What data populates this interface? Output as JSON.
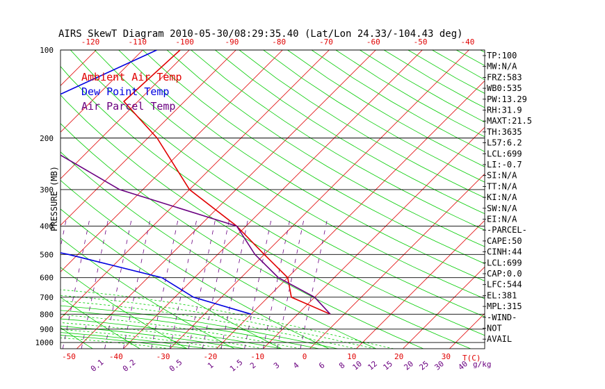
{
  "chart_data": {
    "type": "skewt",
    "title": "AIRS SkewT Diagram 2010-05-30/08:29:35.40 (Lat/Lon 24.33/-104.43 deg)",
    "ylabel": "PRESSURE (MB)",
    "temp_unit": "T(C)",
    "mixing_unit": "g/kg",
    "pressure_ticks": [
      100,
      200,
      300,
      400,
      500,
      600,
      700,
      800,
      900,
      1000
    ],
    "top_temp_ticks": [
      "-120",
      "-110",
      "-100",
      "-90",
      "-80",
      "-70",
      "-60",
      "-50",
      "-40"
    ],
    "bottom_temp_ticks": [
      "-50",
      "-40",
      "-30",
      "-20",
      "-10",
      "0",
      "10",
      "20",
      "30"
    ],
    "mixing_ticks": [
      "0.1",
      "0.2",
      "0.5",
      "1",
      "1.5",
      "2",
      "3",
      "4",
      "6",
      "8",
      "10",
      "12",
      "15",
      "20",
      "25",
      "30",
      "40"
    ],
    "legend": [
      {
        "label": "Ambient Air Temp",
        "color": "#e00000"
      },
      {
        "label": "Dew Point Temp",
        "color": "#0000e0"
      },
      {
        "label": "Air Parcel Temp",
        "color": "#6a0080"
      }
    ],
    "series": [
      {
        "name": "Ambient Air Temp",
        "color": "#e00000",
        "points": [
          [
            100,
            -72
          ],
          [
            150,
            -73
          ],
          [
            200,
            -58
          ],
          [
            300,
            -40
          ],
          [
            400,
            -22
          ],
          [
            500,
            -10
          ],
          [
            600,
            0
          ],
          [
            700,
            5
          ],
          [
            800,
            17
          ]
        ]
      },
      {
        "name": "Dew Point Temp",
        "color": "#0000e0",
        "points": [
          [
            100,
            -77
          ],
          [
            150,
            -90
          ],
          [
            200,
            -92
          ],
          [
            300,
            -110
          ],
          [
            400,
            -88
          ],
          [
            500,
            -52
          ],
          [
            600,
            -27
          ],
          [
            700,
            -16
          ],
          [
            800,
            0
          ]
        ]
      },
      {
        "name": "Air Parcel Temp",
        "color": "#6a0080",
        "points": [
          [
            100,
            -122
          ],
          [
            150,
            -100
          ],
          [
            200,
            -85
          ],
          [
            300,
            -55
          ],
          [
            400,
            -22
          ],
          [
            500,
            -12
          ],
          [
            600,
            -2
          ],
          [
            700,
            10
          ],
          [
            800,
            17
          ]
        ]
      }
    ],
    "indices": [
      "TP:100",
      "MW:N/A",
      "FRZ:583",
      "WB0:535",
      "PW:13.29",
      "RH:31.9",
      "MAXT:21.5",
      "TH:3635",
      "L57:6.2",
      "LCL:699",
      "LI:-0.7",
      "SI:N/A",
      "TT:N/A",
      "KI:N/A",
      "SW:N/A",
      "EI:N/A",
      "-PARCEL-",
      "CAPE:50",
      "CINH:44",
      "LCL:699",
      "CAP:0.0",
      "LFC:544",
      "EL:381",
      "MPL:315",
      "-WIND-",
      "NOT",
      "AVAIL"
    ],
    "colors": {
      "isotherm": "#e00000",
      "dry_adiabat": "#00cc00",
      "moist_adiabat": "#00cc00",
      "mixing_ratio": "#6a0080",
      "isobar": "#000000",
      "tick_text_top": "#e00000",
      "tick_text_bottom": "#e00000",
      "mixing_text": "#6a0080"
    }
  }
}
